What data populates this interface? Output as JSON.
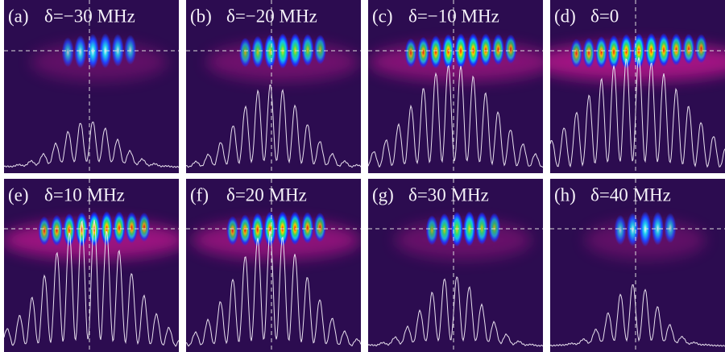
{
  "panels": [
    {
      "label": "(a)",
      "text": "δ=−30 MHz"
    },
    {
      "label": "(b)",
      "text": "δ=−20 MHz"
    },
    {
      "label": "(c)",
      "text": "δ=−10 MHz"
    },
    {
      "label": "(d)",
      "text": "δ=0"
    },
    {
      "label": "(e)",
      "text": "δ=10 MHz"
    },
    {
      "label": "(f)",
      "text": "δ=20 MHz"
    },
    {
      "label": "(g)",
      "text": "δ=30 MHz"
    },
    {
      "label": "(h)",
      "text": "δ=40 MHz"
    }
  ]
}
